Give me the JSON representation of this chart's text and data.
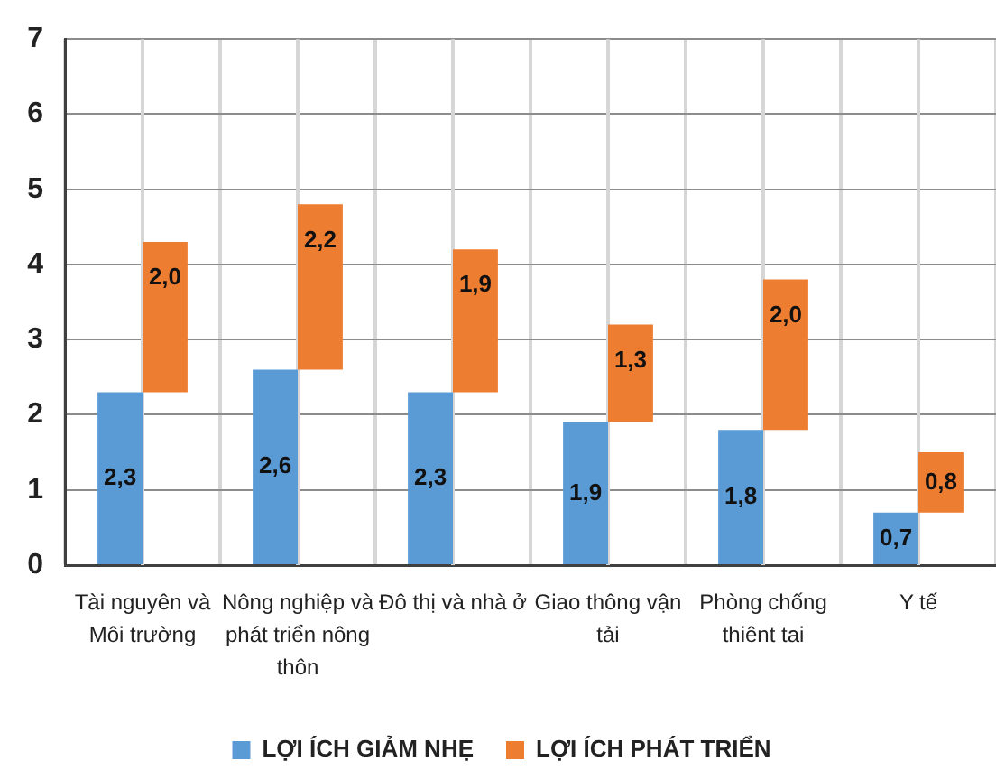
{
  "chart_data": {
    "type": "bar",
    "categories": [
      "Tài nguyên và Môi trường",
      "Nông nghiệp và phát triển nông thôn",
      "Đô thị và nhà ở",
      "Giao thông vận tải",
      "Phòng chống thiênt tai",
      "Y tế"
    ],
    "series": [
      {
        "name": "LỢI ÍCH GIẢM NHẸ",
        "color": "#5b9bd5",
        "values": [
          2.3,
          2.6,
          2.3,
          1.9,
          1.8,
          0.7
        ],
        "value_labels": [
          "2,3",
          "2,6",
          "2,3",
          "1,9",
          "1,8",
          "0,7"
        ]
      },
      {
        "name": "LỢI ÍCH PHÁT TRIỂN",
        "color": "#ed7d31",
        "base": [
          2.3,
          2.6,
          2.3,
          1.9,
          1.8,
          0.7
        ],
        "values": [
          2.0,
          2.2,
          1.9,
          1.3,
          2.0,
          0.8
        ],
        "value_labels": [
          "2,0",
          "2,2",
          "1,9",
          "1,3",
          "2,0",
          "0,8"
        ]
      }
    ],
    "ylim": [
      0,
      7
    ],
    "yticks": [
      0,
      1,
      2,
      3,
      4,
      5,
      6,
      7
    ],
    "grid": true,
    "legend": "bottom"
  }
}
